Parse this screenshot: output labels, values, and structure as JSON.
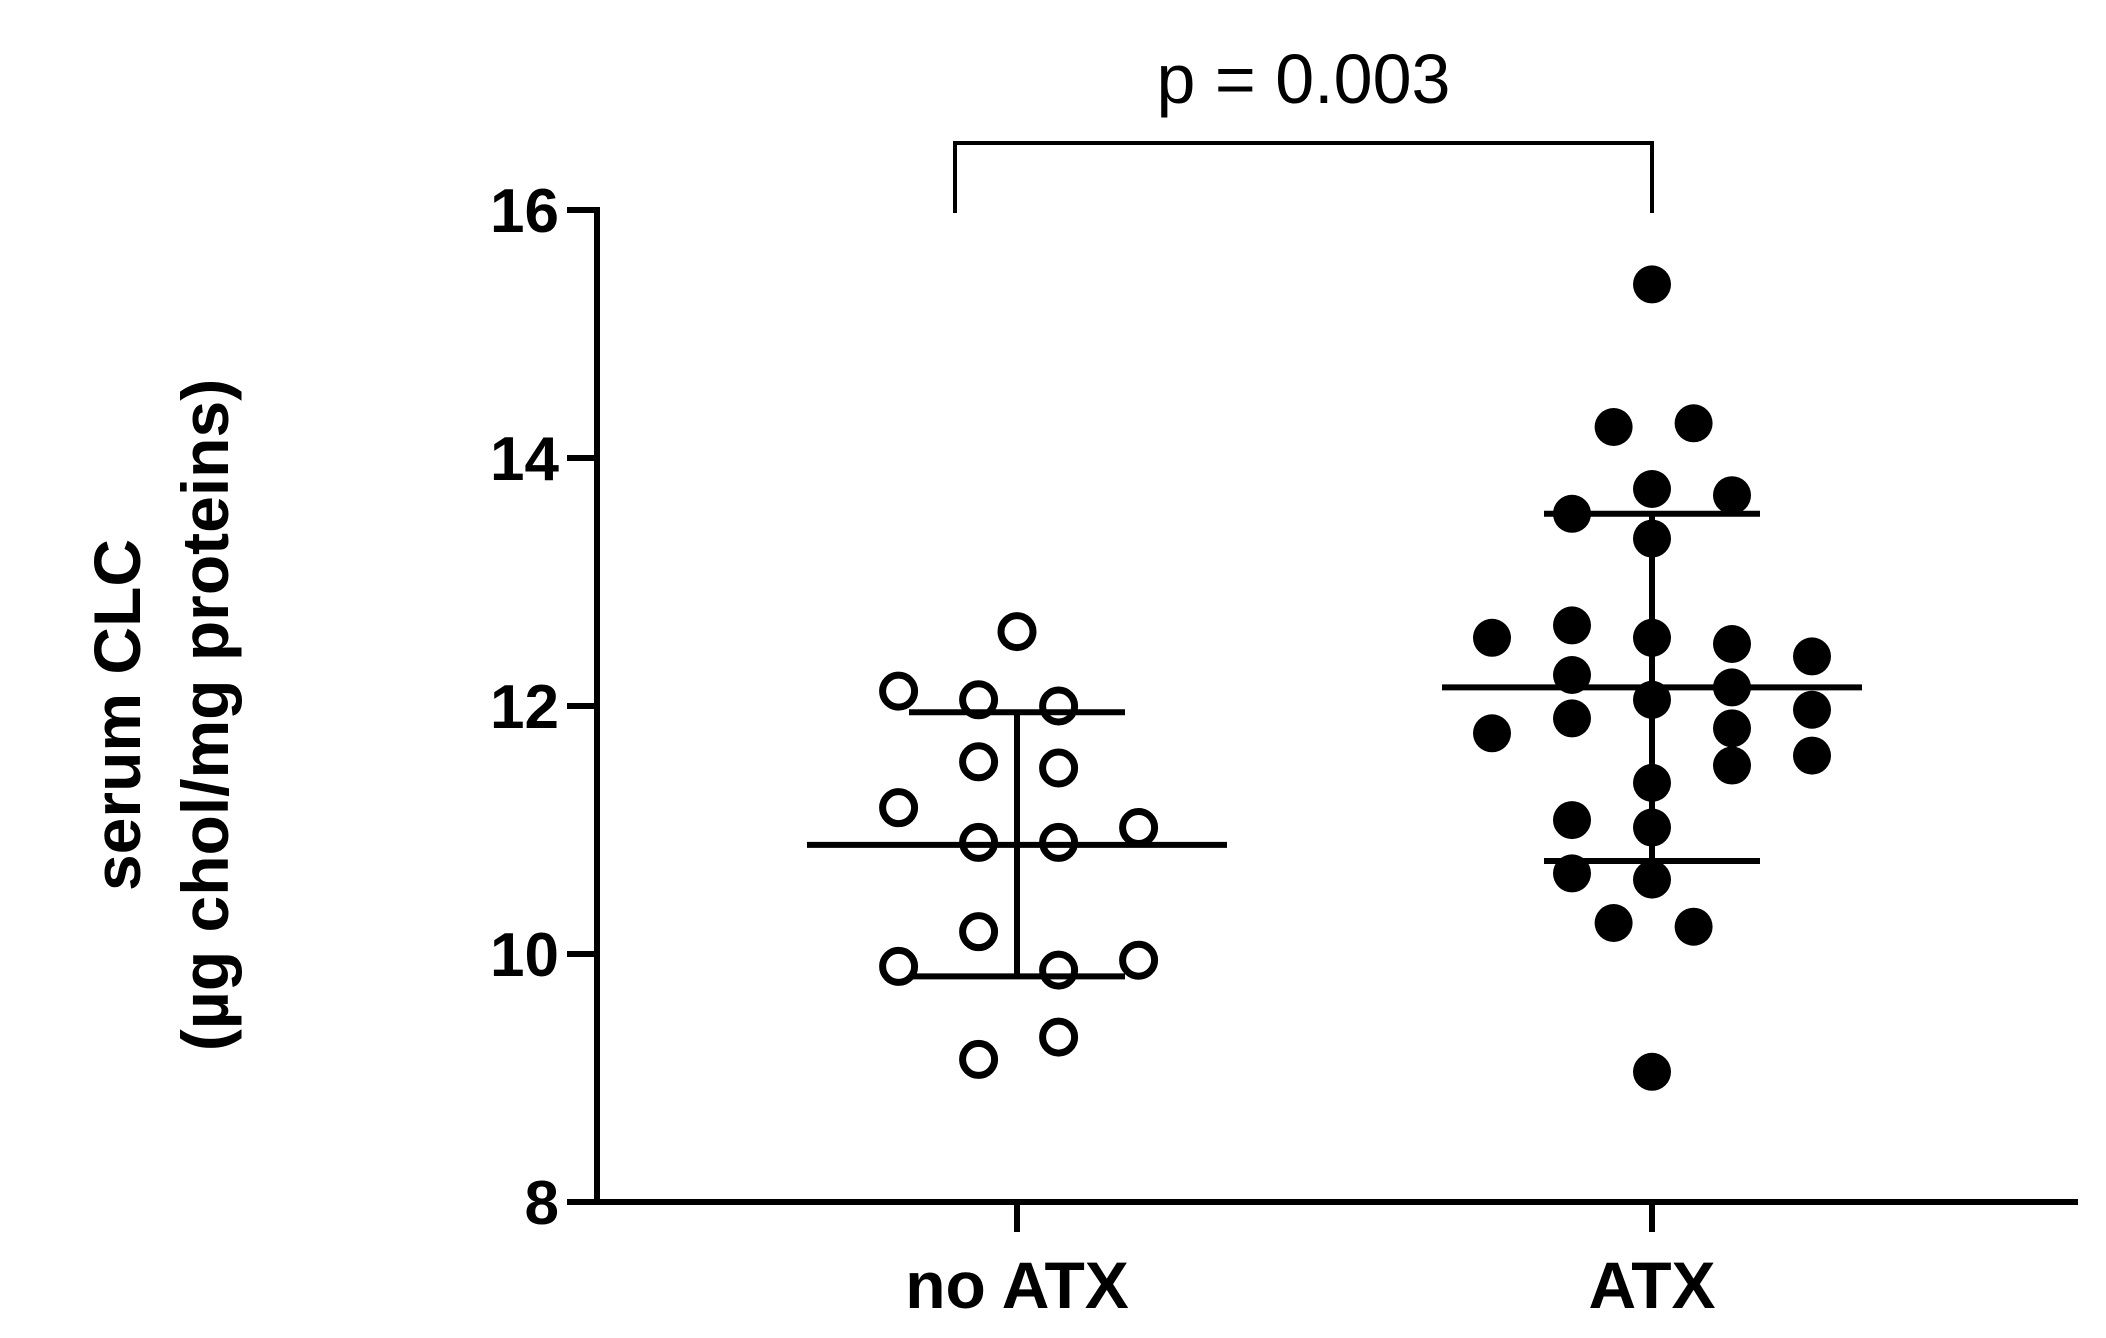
{
  "chart_data": {
    "type": "scatter",
    "ylabel_line1": "serum CLC",
    "ylabel_line2": "(µg chol/mg proteins)",
    "ylim": [
      8,
      16
    ],
    "yticks": [
      8,
      10,
      12,
      14,
      16
    ],
    "ytick_labels": [
      "8",
      "10",
      "12",
      "14",
      "16"
    ],
    "categories": [
      "no ATX",
      "ATX"
    ],
    "annotation": "p = 0.003",
    "series": [
      {
        "category": "no ATX",
        "marker": "open",
        "mean": 10.88,
        "sd_upper": 11.95,
        "sd_lower": 9.82,
        "points": [
          {
            "x": -0.37,
            "y": 12.12
          },
          {
            "x": -0.12,
            "y": 12.05
          },
          {
            "x": 0.13,
            "y": 12.0
          },
          {
            "x": 0.0,
            "y": 12.6
          },
          {
            "x": -0.12,
            "y": 11.55
          },
          {
            "x": 0.13,
            "y": 11.5
          },
          {
            "x": -0.37,
            "y": 11.18
          },
          {
            "x": -0.12,
            "y": 10.9
          },
          {
            "x": 0.13,
            "y": 10.9
          },
          {
            "x": 0.38,
            "y": 11.02
          },
          {
            "x": -0.12,
            "y": 10.18
          },
          {
            "x": -0.37,
            "y": 9.9
          },
          {
            "x": 0.13,
            "y": 9.87
          },
          {
            "x": 0.38,
            "y": 9.95
          },
          {
            "x": 0.13,
            "y": 9.33
          },
          {
            "x": -0.12,
            "y": 9.15
          }
        ]
      },
      {
        "category": "ATX",
        "marker": "filled",
        "mean": 12.15,
        "sd_upper": 13.55,
        "sd_lower": 10.75,
        "points": [
          {
            "x": 0.0,
            "y": 15.4
          },
          {
            "x": -0.12,
            "y": 14.25
          },
          {
            "x": 0.13,
            "y": 14.28
          },
          {
            "x": 0.0,
            "y": 13.75
          },
          {
            "x": 0.25,
            "y": 13.7
          },
          {
            "x": -0.25,
            "y": 13.55
          },
          {
            "x": 0.0,
            "y": 13.35
          },
          {
            "x": -0.5,
            "y": 12.55
          },
          {
            "x": -0.25,
            "y": 12.65
          },
          {
            "x": 0.0,
            "y": 12.55
          },
          {
            "x": 0.25,
            "y": 12.5
          },
          {
            "x": 0.5,
            "y": 12.4
          },
          {
            "x": -0.25,
            "y": 12.25
          },
          {
            "x": 0.0,
            "y": 12.05
          },
          {
            "x": 0.25,
            "y": 12.15
          },
          {
            "x": -0.5,
            "y": 11.78
          },
          {
            "x": -0.25,
            "y": 11.9
          },
          {
            "x": 0.25,
            "y": 11.82
          },
          {
            "x": 0.5,
            "y": 11.97
          },
          {
            "x": 0.25,
            "y": 11.52
          },
          {
            "x": 0.5,
            "y": 11.6
          },
          {
            "x": 0.0,
            "y": 11.38
          },
          {
            "x": -0.25,
            "y": 11.08
          },
          {
            "x": 0.0,
            "y": 11.02
          },
          {
            "x": -0.25,
            "y": 10.65
          },
          {
            "x": 0.0,
            "y": 10.6
          },
          {
            "x": -0.12,
            "y": 10.25
          },
          {
            "x": 0.13,
            "y": 10.22
          },
          {
            "x": 0.0,
            "y": 9.05
          }
        ]
      }
    ]
  }
}
